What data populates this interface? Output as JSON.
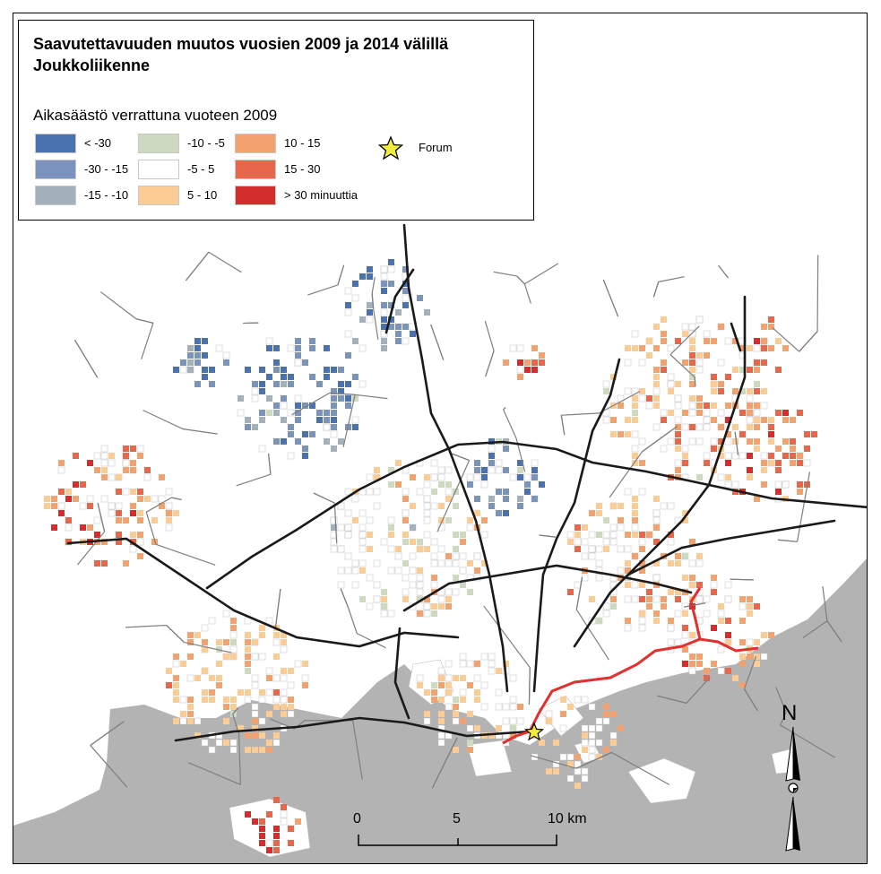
{
  "title_line1": "Saavutettavuuden muutos vuosien 2009 ja 2014 välillä",
  "title_line2": "Joukkoliikenne",
  "legend_subtitle": "Aikasäästö verrattuna vuoteen 2009",
  "legend_items": [
    {
      "label": "< -30",
      "color": "#4a72b0"
    },
    {
      "label": "-30 - -15",
      "color": "#7b93bd"
    },
    {
      "label": "-15 - -10",
      "color": "#a3b1bd"
    },
    {
      "label": "-10 - -5",
      "color": "#cdd9c1"
    },
    {
      "label": "-5 - 5",
      "color": "#ffffff"
    },
    {
      "label": "5 - 10",
      "color": "#fbcc94"
    },
    {
      "label": "10 - 15",
      "color": "#f4a170"
    },
    {
      "label": "15 - 30",
      "color": "#e8674a"
    },
    {
      "label": "> 30 minuuttia",
      "color": "#d42e2c"
    }
  ],
  "marker": {
    "label": "Forum",
    "color": "#f2ec3a"
  },
  "scale_bar": {
    "labels": [
      "0",
      "5",
      "10 km"
    ]
  },
  "north_label": "N",
  "colors": {
    "sea": "#b3b3b3",
    "land": "#ffffff",
    "roads_major": "#1a1a1a",
    "roads_minor": "#7f7f7f",
    "metro": "#e03030"
  }
}
